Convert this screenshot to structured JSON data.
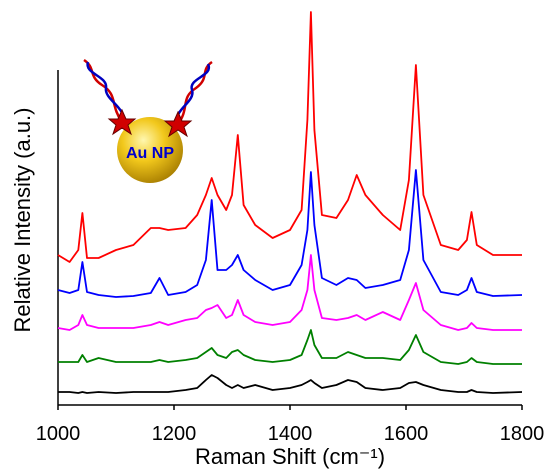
{
  "chart_data": {
    "type": "line",
    "xlabel": "Raman Shift (cm⁻¹)",
    "ylabel": "Relative Intensity (a.u.)",
    "inset_label": "Au NP",
    "xlim": [
      1000,
      1800
    ],
    "xticks": [
      1000,
      1200,
      1400,
      1600,
      1800
    ],
    "ylim": [
      0,
      100
    ],
    "x": [
      1000,
      1020,
      1035,
      1042,
      1050,
      1070,
      1100,
      1130,
      1160,
      1175,
      1190,
      1220,
      1240,
      1255,
      1265,
      1275,
      1290,
      1300,
      1310,
      1320,
      1340,
      1370,
      1400,
      1420,
      1430,
      1436,
      1442,
      1455,
      1480,
      1500,
      1515,
      1530,
      1560,
      1590,
      1605,
      1617,
      1630,
      1660,
      1690,
      1705,
      1713,
      1722,
      1750,
      1800
    ],
    "series": [
      {
        "color": "#ff0000",
        "values": [
          37.5,
          35.75,
          38.75,
          48,
          36.75,
          36.75,
          38.75,
          40,
          44.25,
          44.25,
          43.75,
          44.25,
          47.5,
          52.5,
          56.75,
          52.5,
          48.75,
          52.5,
          67.5,
          50,
          45,
          41.75,
          43.75,
          48.75,
          71.25,
          98.25,
          68.75,
          47.5,
          46.75,
          51.25,
          57.5,
          52.5,
          47.5,
          43.75,
          56.25,
          85,
          52.5,
          40,
          38.75,
          41.25,
          48.25,
          40,
          37.5,
          37.5
        ]
      },
      {
        "color": "#0000ff",
        "values": [
          28.75,
          28,
          28.75,
          35.75,
          28.25,
          27.5,
          27,
          27.25,
          28,
          31.75,
          27.5,
          28.25,
          30,
          36.25,
          51.25,
          33.75,
          33.75,
          35,
          37.5,
          33.75,
          31.25,
          28.75,
          30,
          35,
          43.75,
          58.25,
          45,
          31.75,
          30,
          31.75,
          31.25,
          29.25,
          30,
          31.25,
          38.75,
          58.75,
          36.25,
          28.25,
          27.5,
          28.75,
          31.75,
          28.25,
          27.25,
          27.5
        ]
      },
      {
        "color": "#ff00ff",
        "values": [
          19.25,
          18.75,
          20,
          22.5,
          20,
          19.25,
          19.25,
          19.25,
          20,
          20.75,
          20,
          21.25,
          21.75,
          23.75,
          24.25,
          25,
          21.75,
          22.5,
          26.25,
          22.5,
          20.75,
          20,
          20.75,
          23.75,
          28.75,
          37.5,
          28.75,
          21.75,
          21.25,
          21.75,
          22.5,
          21.25,
          23.25,
          21.25,
          26.25,
          30.5,
          23.75,
          20,
          18.75,
          19.25,
          20.5,
          19.25,
          18.75,
          18.75
        ]
      },
      {
        "color": "#008000",
        "values": [
          10.75,
          10.75,
          10.75,
          12.5,
          10.75,
          11.75,
          10.75,
          10.75,
          10.75,
          11.25,
          10.75,
          11.25,
          11.75,
          13.25,
          14.25,
          12.5,
          11.75,
          13.25,
          13.75,
          12.5,
          11.25,
          10.75,
          11.25,
          12.5,
          16.25,
          18.75,
          15,
          11.75,
          11.75,
          13.25,
          12.5,
          11.75,
          11.75,
          11.25,
          13.75,
          17.5,
          13.25,
          10.75,
          10.25,
          10.75,
          11.75,
          10.75,
          10.25,
          10.25
        ]
      },
      {
        "color": "#000000",
        "values": [
          3.25,
          3.25,
          3,
          3.25,
          3,
          3.25,
          3,
          3.25,
          3.25,
          3.25,
          3.25,
          3.75,
          4.25,
          6.25,
          7.5,
          6.75,
          5,
          4.25,
          5,
          4.25,
          5,
          3.75,
          4.25,
          5,
          5.75,
          6.25,
          5.5,
          4.25,
          5,
          6.25,
          5.75,
          4.25,
          3.75,
          4.25,
          5.5,
          5.75,
          5,
          3.75,
          3.25,
          3.25,
          3.75,
          3.25,
          3,
          3.25
        ]
      }
    ]
  }
}
